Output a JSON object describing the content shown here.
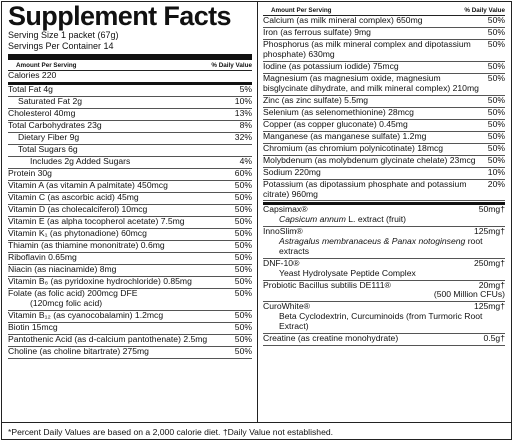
{
  "title": "Supplement Facts",
  "serving_size": "Serving Size 1 packet (67g)",
  "servings_per_container": "Servings Per Container 14",
  "left_header": {
    "amount": "Amount Per Serving",
    "dv": "% Daily Value"
  },
  "calories": "Calories  220",
  "left_rows": [
    {
      "label": "Total Fat  4g",
      "dv": "5%"
    },
    {
      "label": "Saturated Fat  2g",
      "dv": "10%",
      "indent": 1
    },
    {
      "label": "Cholesterol  40mg",
      "dv": "13%"
    },
    {
      "label": "Total Carbohydrates  23g",
      "dv": "8%"
    },
    {
      "label": "Dietary Fiber  9g",
      "dv": "32%",
      "indent": 1
    },
    {
      "label": "Total Sugars  6g",
      "dv": "",
      "indent": 1
    },
    {
      "label": "Includes  2g Added Sugars",
      "dv": "4%",
      "indent": 2
    },
    {
      "label": "Protein  30g",
      "dv": "60%"
    },
    {
      "label": "Vitamin A (as vitamin A palmitate)  450mcg",
      "dv": "50%"
    },
    {
      "label": "Vitamin C (as ascorbic acid)  45mg",
      "dv": "50%"
    },
    {
      "label": "Vitamin D (as cholecalciferol)  10mcg",
      "dv": "50%"
    },
    {
      "label": "Vitamin E (as alpha tocopherol acetate)  7.5mg",
      "dv": "50%"
    },
    {
      "label": "Vitamin K₁ (as phytonadione)  60mcg",
      "dv": "50%"
    },
    {
      "label": "Thiamin (as thiamine mononitrate)  0.6mg",
      "dv": "50%"
    },
    {
      "label": "Riboflavin  0.65mg",
      "dv": "50%"
    },
    {
      "label": "Niacin (as niacinamide)  8mg",
      "dv": "50%"
    },
    {
      "label": "Vitamin B₆ (as pyridoxine hydrochloride)  0.85mg",
      "dv": "50%"
    },
    {
      "label": "Folate (as folic acid)  200mcg DFE",
      "label2": "(120mcg folic acid)",
      "dv": "50%"
    },
    {
      "label": "Vitamin B₁₂ (as cyanocobalamin)  1.2mcg",
      "dv": "50%"
    },
    {
      "label": "Biotin  15mcg",
      "dv": "50%"
    },
    {
      "label": "Pantothenic Acid (as d-calcium pantothenate)  2.5mg",
      "dv": "50%"
    },
    {
      "label": "Choline (as choline bitartrate)  275mg",
      "dv": "50%"
    }
  ],
  "right_header": {
    "amount": "Amount Per Serving",
    "dv": "% Daily Value"
  },
  "right_rows": [
    {
      "label": "Calcium (as milk mineral complex)  650mg",
      "dv": "50%"
    },
    {
      "label": "Iron (as ferrous sulfate)  9mg",
      "dv": "50%"
    },
    {
      "label": "Phosphorus (as milk mineral complex and dipotassium phosphate)  630mg",
      "dv": "50%"
    },
    {
      "label": "Iodine (as potassium iodide)  75mcg",
      "dv": "50%"
    },
    {
      "label": "Magnesium (as magnesium oxide, magnesium bisglycinate dihydrate, and milk mineral complex)  210mg",
      "dv": "50%"
    },
    {
      "label": "Zinc (as zinc sulfate)  5.5mg",
      "dv": "50%"
    },
    {
      "label": "Selenium (as selenomethionine)  28mcg",
      "dv": "50%"
    },
    {
      "label": "Copper (as copper gluconate)  0.45mg",
      "dv": "50%"
    },
    {
      "label": "Manganese (as manganese sulfate)  1.2mg",
      "dv": "50%"
    },
    {
      "label": "Chromium (as chromium polynicotinate)  18mcg",
      "dv": "50%"
    },
    {
      "label": "Molybdenum (as molybdenum glycinate chelate)  23mcg",
      "dv": "50%"
    },
    {
      "label": "Sodium  220mg",
      "dv": "10%"
    },
    {
      "label": "Potassium (as dipotassium phosphate and potassium citrate)  960mg",
      "dv": "20%"
    }
  ],
  "blends": [
    {
      "name": "Capsimax®",
      "desc_italic": "Capsicum annum",
      "desc": " L. extract (fruit)",
      "amount": "50mg†"
    },
    {
      "name": "InnoSlim®",
      "desc_italic": "Astragalus membranaceus & Panax notoginseng",
      "desc": " root extracts",
      "amount": "125mg†"
    },
    {
      "name": "DNF-10®",
      "desc_italic": "",
      "desc": "Yeast Hydrolysate Peptide Complex",
      "amount": "250mg†"
    },
    {
      "name": "Probiotic Bacillus subtilis DE111®",
      "desc_italic": "",
      "desc": "",
      "amount": "20mg†",
      "amount2": "(500 Million CFUs)"
    },
    {
      "name": "CuroWhite®",
      "desc_italic": "",
      "desc": "Beta Cyclodextrin, Curcuminoids (from Turmoric Root Extract)",
      "amount": "125mg†"
    },
    {
      "name": "Creatine (as creatine monohydrate)",
      "desc_italic": "",
      "desc": "",
      "amount": "0.5g†"
    }
  ],
  "footnote": "*Percent Daily Values are based on a 2,000 calorie diet.  †Daily Value not established."
}
